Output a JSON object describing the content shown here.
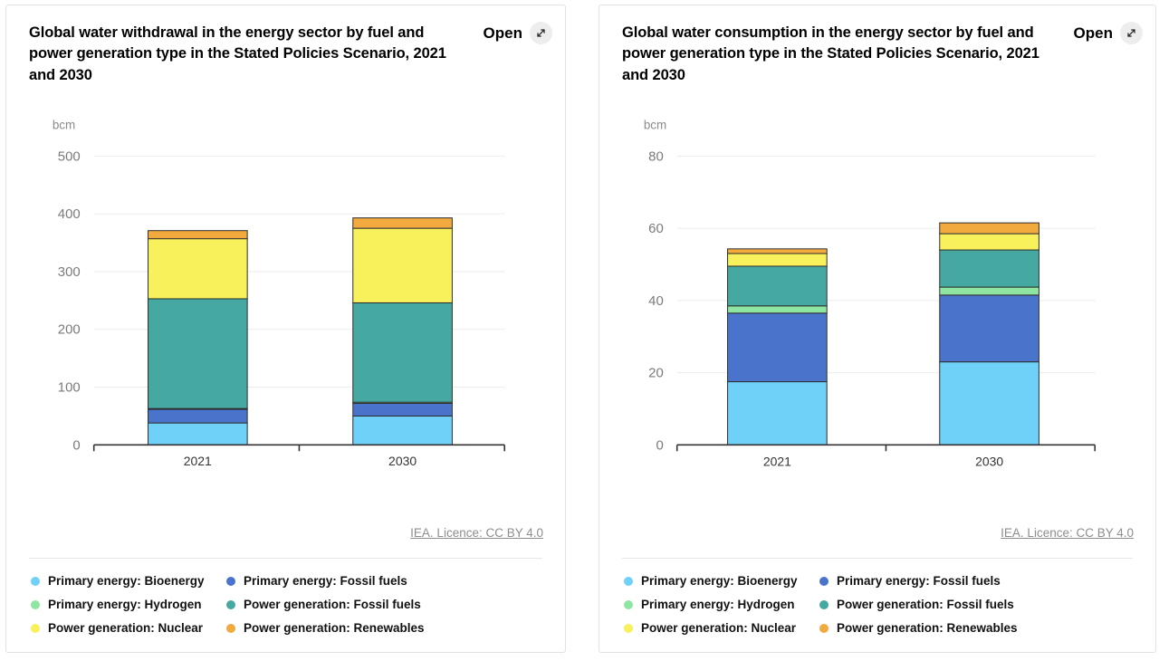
{
  "cards": [
    {
      "title": "Global water withdrawal in the energy sector by fuel and power generation type in the Stated Policies Scenario, 2021 and 2030",
      "open_label": "Open",
      "licence_label": "IEA. Licence: CC BY 4.0",
      "unit_label": "bcm"
    },
    {
      "title": "Global water consumption in the energy sector by fuel and power generation type in the Stated Policies Scenario, 2021 and 2030",
      "open_label": "Open",
      "licence_label": "IEA. Licence: CC BY 4.0",
      "unit_label": "bcm"
    }
  ],
  "chart_data": [
    {
      "type": "bar",
      "stacked": true,
      "title": "Global water withdrawal in the energy sector by fuel and power generation type in the Stated Policies Scenario, 2021 and 2030",
      "categories": [
        "2021",
        "2030"
      ],
      "series": [
        {
          "name": "Primary energy: Bioenergy",
          "color": "#6fd1f7",
          "values": [
            38,
            50
          ]
        },
        {
          "name": "Primary energy: Fossil fuels",
          "color": "#4a73cc",
          "values": [
            24,
            22
          ]
        },
        {
          "name": "Primary energy: Hydrogen",
          "color": "#8ee6a2",
          "values": [
            1,
            2
          ]
        },
        {
          "name": "Power generation: Fossil fuels",
          "color": "#46a9a1",
          "values": [
            190,
            172
          ]
        },
        {
          "name": "Power generation: Nuclear",
          "color": "#f8f15b",
          "values": [
            104,
            129
          ]
        },
        {
          "name": "Power generation: Renewables",
          "color": "#f2a93e",
          "values": [
            14,
            18
          ]
        }
      ],
      "xlabel": "",
      "ylabel": "bcm",
      "ylim": [
        0,
        500
      ],
      "yticks": [
        0,
        100,
        200,
        300,
        400,
        500
      ],
      "grid": true,
      "legend_position": "bottom"
    },
    {
      "type": "bar",
      "stacked": true,
      "title": "Global water consumption in the energy sector by fuel and power generation type in the Stated Policies Scenario, 2021 and 2030",
      "categories": [
        "2021",
        "2030"
      ],
      "series": [
        {
          "name": "Primary energy: Bioenergy",
          "color": "#6fd1f7",
          "values": [
            17.5,
            23
          ]
        },
        {
          "name": "Primary energy: Fossil fuels",
          "color": "#4a73cc",
          "values": [
            19,
            18.5
          ]
        },
        {
          "name": "Primary energy: Hydrogen",
          "color": "#8ee6a2",
          "values": [
            2,
            2.2
          ]
        },
        {
          "name": "Power generation: Fossil fuels",
          "color": "#46a9a1",
          "values": [
            11,
            10.3
          ]
        },
        {
          "name": "Power generation: Nuclear",
          "color": "#f8f15b",
          "values": [
            3.5,
            4.5
          ]
        },
        {
          "name": "Power generation: Renewables",
          "color": "#f2a93e",
          "values": [
            1.3,
            3
          ]
        }
      ],
      "xlabel": "",
      "ylabel": "bcm",
      "ylim": [
        0,
        80
      ],
      "yticks": [
        0,
        20,
        40,
        60,
        80
      ],
      "grid": true,
      "legend_position": "bottom"
    }
  ],
  "colors": {
    "bar_border": "#2e2e2e",
    "axis": "#333333",
    "gridline": "#ebebeb",
    "tick_text": "#7a7a7a",
    "licence_text": "#8d8d8d",
    "card_border": "#e2e2e2",
    "open_badge_bg": "#ededed"
  }
}
